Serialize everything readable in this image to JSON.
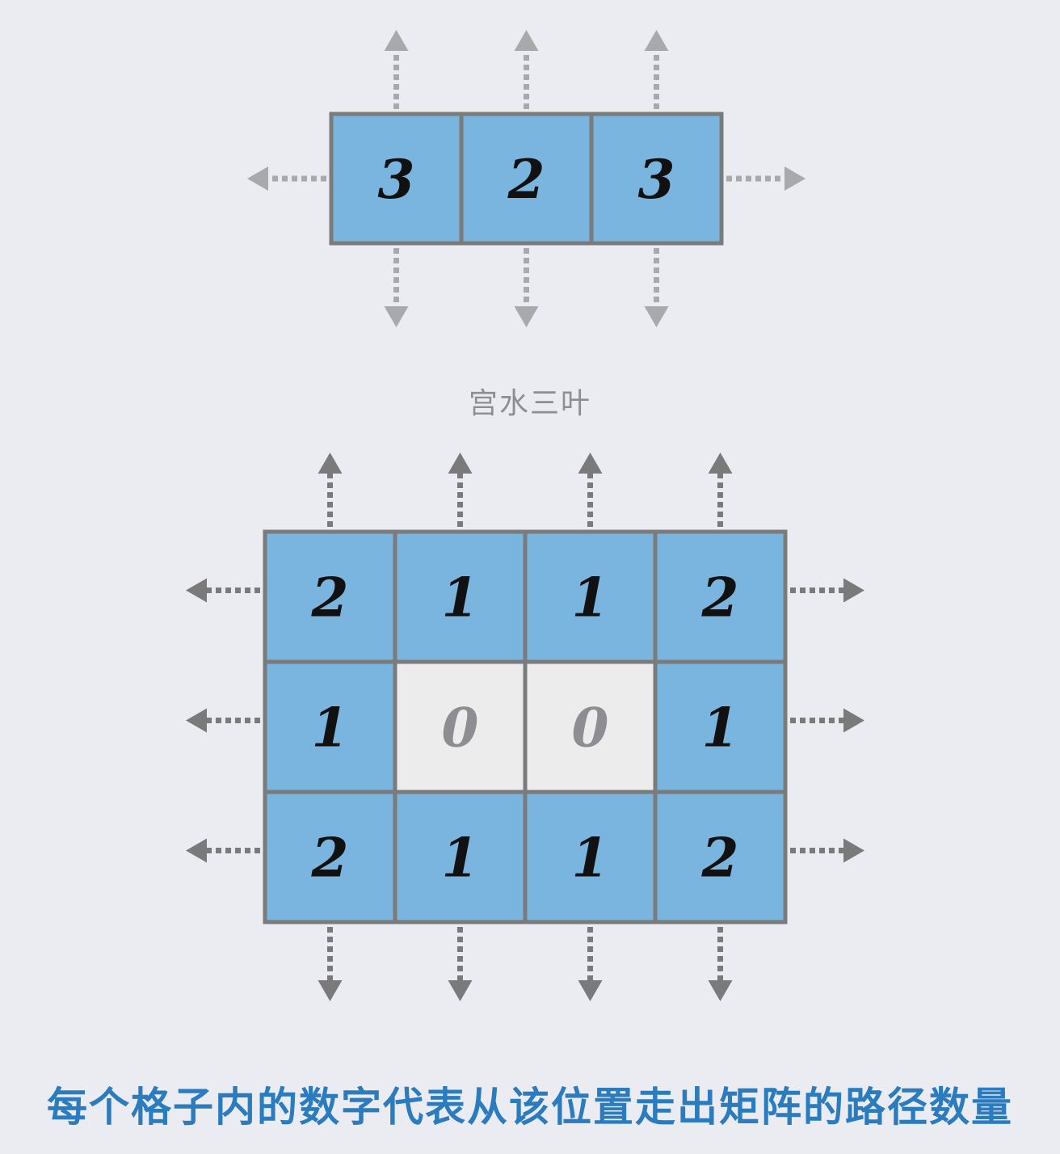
{
  "watermark": "宫水三叶",
  "caption": "每个格子内的数字代表从该位置走出矩阵的路径数量",
  "colors": {
    "background": "#ebecf1",
    "cell_filled": "#7ab5df",
    "cell_empty": "#ececec",
    "border": "#7b7b7b",
    "arrow": "#a9a9ab",
    "arrow_dark": "#7a7a7a",
    "number": "#111111",
    "number_zero": "#8e8e92",
    "caption": "#2b7bbf"
  },
  "grids": [
    {
      "id": "grid-1x3",
      "rows": 1,
      "cols": 3,
      "values": [
        [
          3,
          2,
          3
        ]
      ],
      "filled": [
        [
          true,
          true,
          true
        ]
      ]
    },
    {
      "id": "grid-3x4",
      "rows": 3,
      "cols": 4,
      "values": [
        [
          2,
          1,
          1,
          2
        ],
        [
          1,
          0,
          0,
          1
        ],
        [
          2,
          1,
          1,
          2
        ]
      ],
      "filled": [
        [
          true,
          true,
          true,
          true
        ],
        [
          true,
          false,
          false,
          true
        ],
        [
          true,
          true,
          true,
          true
        ]
      ]
    }
  ]
}
